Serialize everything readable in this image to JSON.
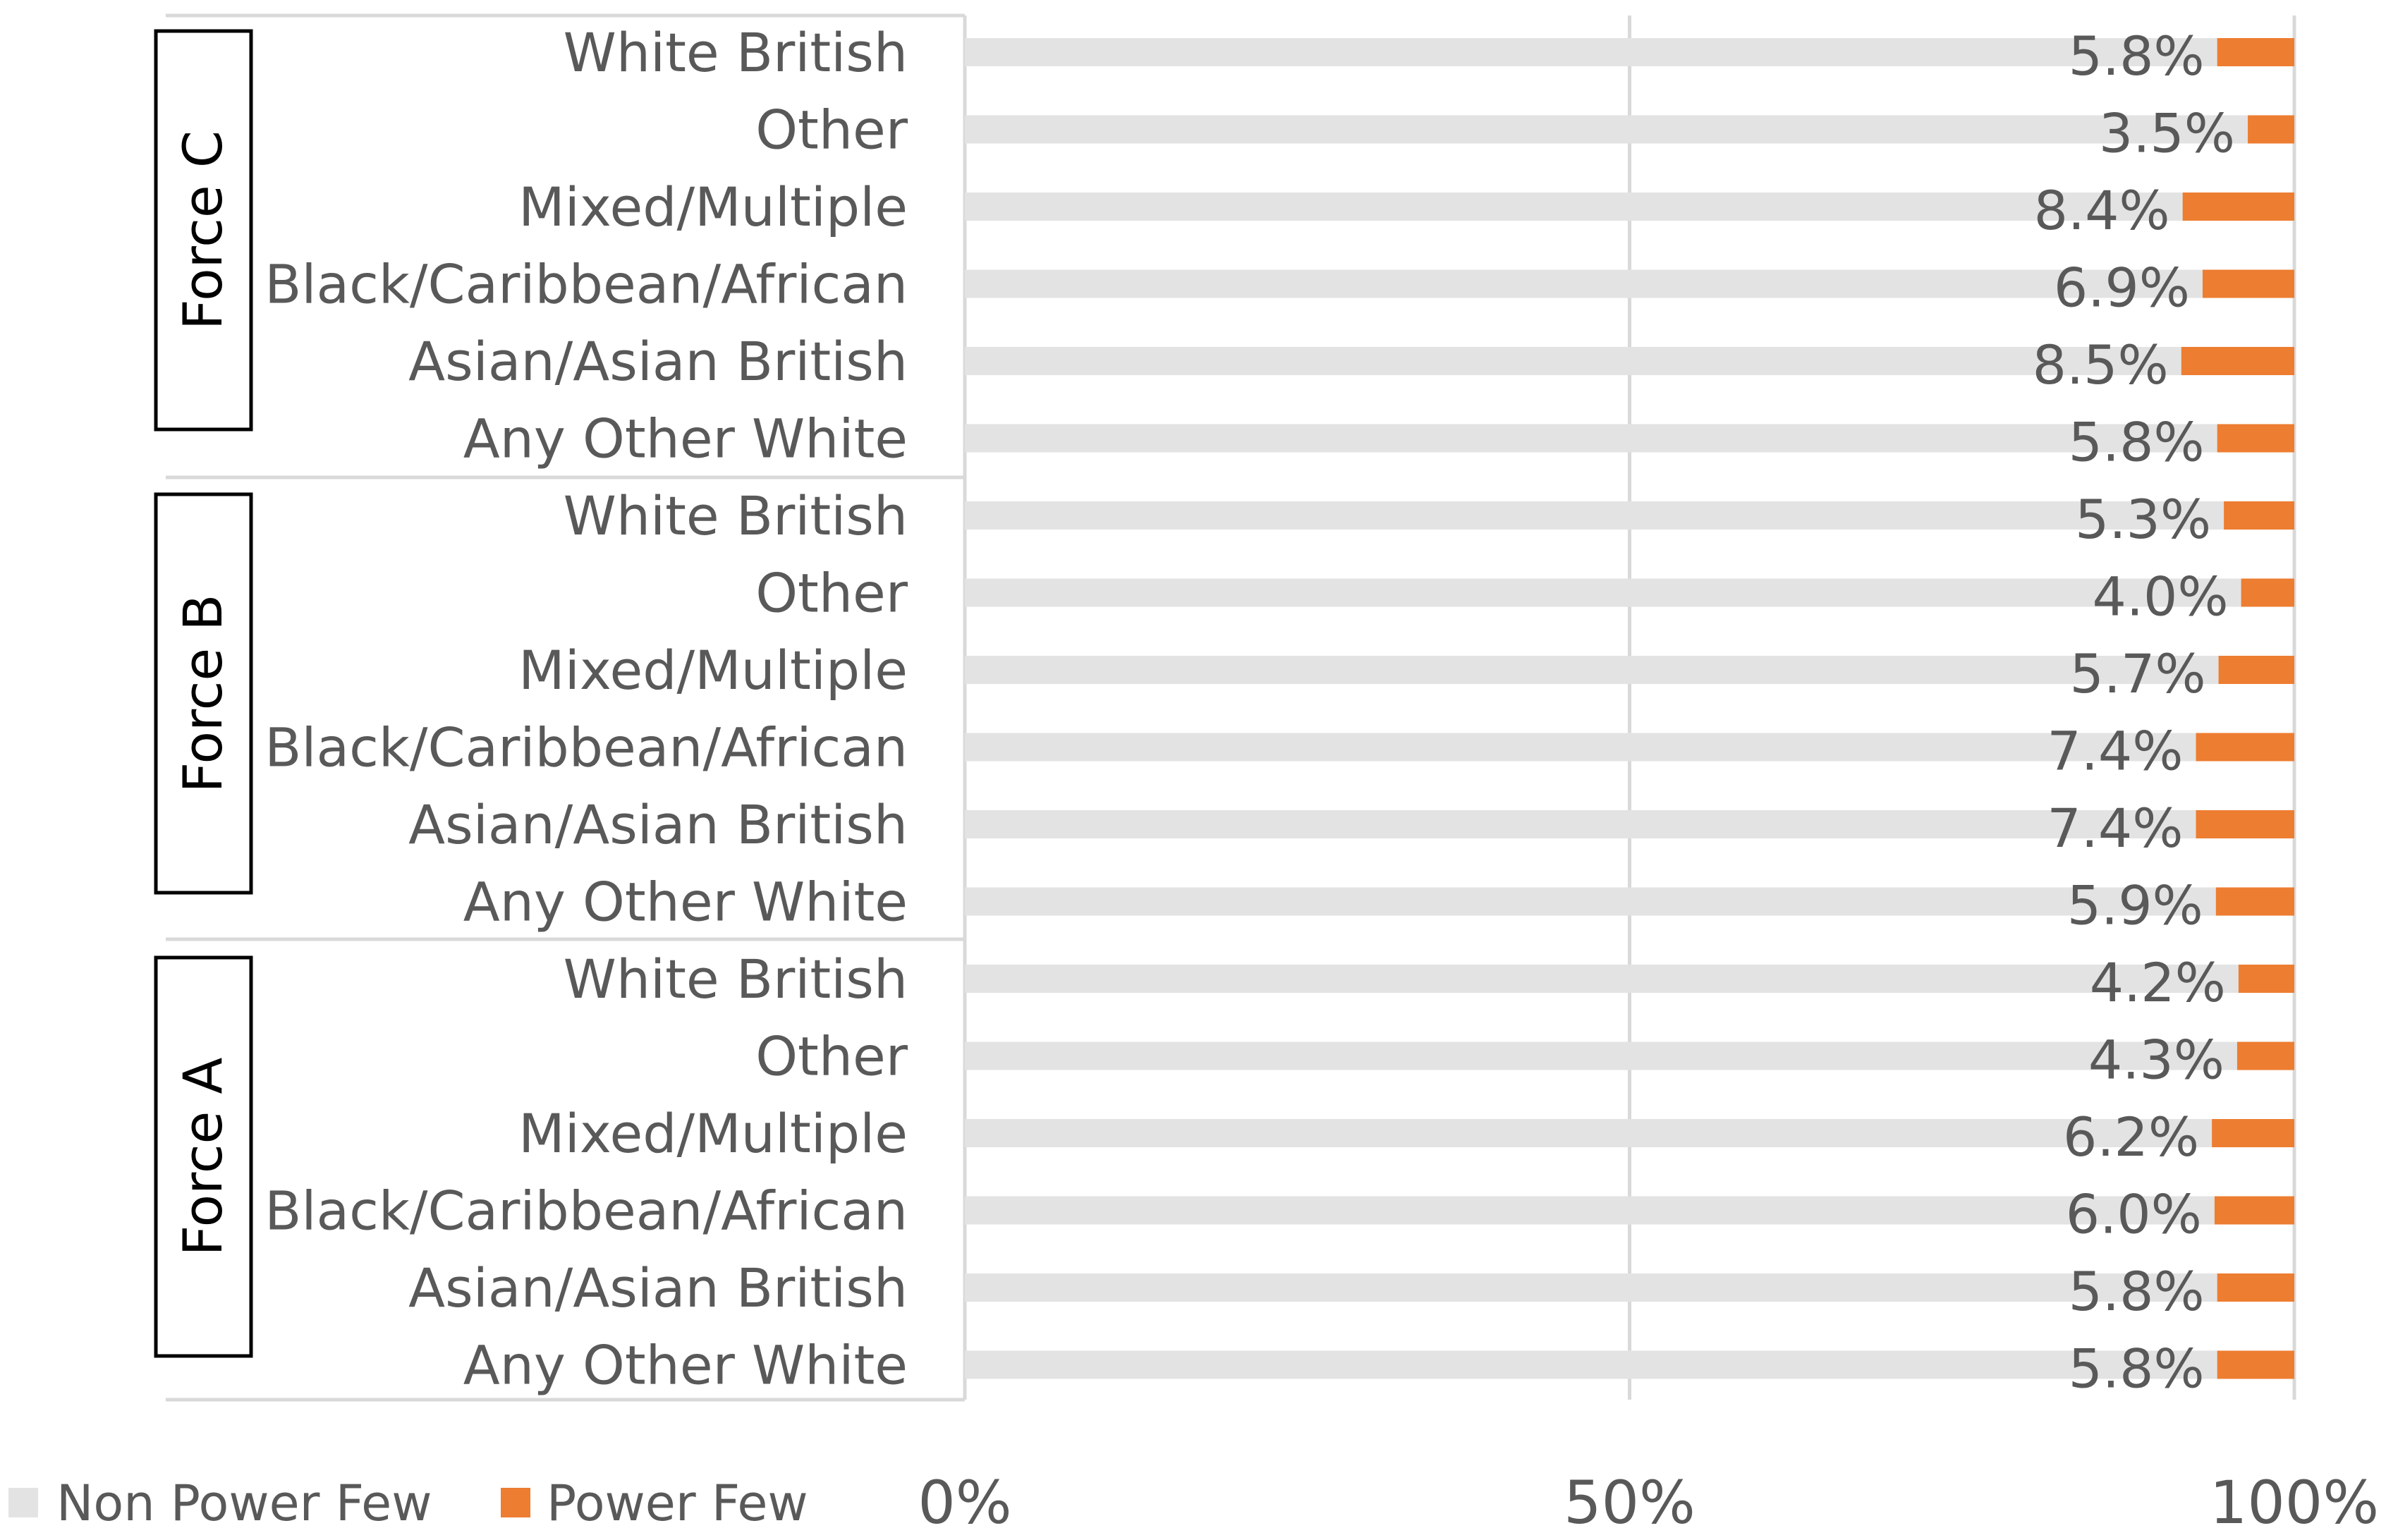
{
  "chart_data": {
    "type": "bar",
    "orientation": "horizontal",
    "stacked": true,
    "percent_stacked": true,
    "xlim": [
      0,
      100
    ],
    "x_ticks": [
      "0%",
      "50%",
      "100%"
    ],
    "grid": true,
    "legend_position": "bottom-left",
    "groups": [
      {
        "name": "Force C",
        "categories": [
          "White British",
          "Other",
          "Mixed/Multiple",
          "Black/Caribbean/African",
          "Asian/Asian British",
          "Any Other White"
        ]
      },
      {
        "name": "Force B",
        "categories": [
          "White British",
          "Other",
          "Mixed/Multiple",
          "Black/Caribbean/African",
          "Asian/Asian British",
          "Any Other White"
        ]
      },
      {
        "name": "Force A",
        "categories": [
          "White British",
          "Other",
          "Mixed/Multiple",
          "Black/Caribbean/African",
          "Asian/Asian British",
          "Any Other White"
        ]
      }
    ],
    "series": [
      {
        "name": "Non Power Few",
        "color": "#e3e3e3",
        "values": [
          94.2,
          96.5,
          91.6,
          93.1,
          91.5,
          94.2,
          94.7,
          96.0,
          94.3,
          92.6,
          92.6,
          94.1,
          95.8,
          95.7,
          93.8,
          94.0,
          94.2,
          94.2
        ]
      },
      {
        "name": "Power Few",
        "color": "#ed7d31",
        "values": [
          5.8,
          3.5,
          8.4,
          6.9,
          8.5,
          5.8,
          5.3,
          4.0,
          5.7,
          7.4,
          7.4,
          5.9,
          4.2,
          4.3,
          6.2,
          6.0,
          5.8,
          5.8
        ]
      }
    ],
    "data_labels": [
      "5.8%",
      "3.5%",
      "8.4%",
      "6.9%",
      "8.5%",
      "5.8%",
      "5.3%",
      "4.0%",
      "5.7%",
      "7.4%",
      "7.4%",
      "5.9%",
      "4.2%",
      "4.3%",
      "6.2%",
      "6.0%",
      "5.8%",
      "5.8%"
    ]
  }
}
